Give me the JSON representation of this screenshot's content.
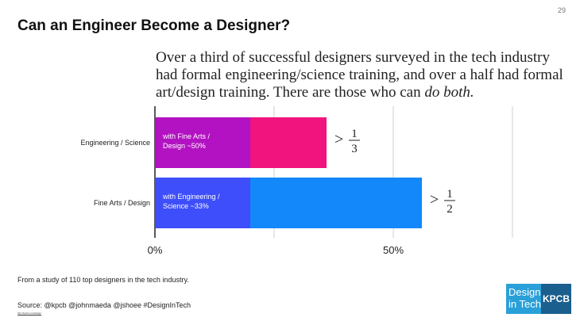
{
  "page_number": "29",
  "title": "Can an Engineer Become a Designer?",
  "subtitle": {
    "line1": "Over a third of successful designers surveyed in the tech industry",
    "line2": "had formal engineering/science training, and over a half had formal",
    "line3_prefix": "art/design training. There are those who can ",
    "line3_emphasis": "do both."
  },
  "chart_data": {
    "type": "bar",
    "orientation": "horizontal",
    "categories": [
      "Engineering / Science",
      "Fine Arts / Design"
    ],
    "series": [
      {
        "name": "Overlap",
        "values": [
          20,
          20
        ]
      },
      {
        "name": "Remainder",
        "values": [
          16,
          36
        ]
      }
    ],
    "totals": [
      36,
      56
    ],
    "bar_colors": [
      {
        "overlap": "#b312c2",
        "remainder": "#f2147e"
      },
      {
        "overlap": "#3e4efb",
        "remainder": "#1388fb"
      }
    ],
    "inner_labels": [
      [
        "with Fine Arts /",
        "Design ~50%"
      ],
      [
        "with Engineering /",
        "Science ~33%"
      ]
    ],
    "annotations": [
      {
        "symbol": ">",
        "numerator": "1",
        "denominator": "3"
      },
      {
        "symbol": ">",
        "numerator": "1",
        "denominator": "2"
      }
    ],
    "x_ticks": [
      {
        "value": 0,
        "label": "0%"
      },
      {
        "value": 50,
        "label": "50%"
      }
    ],
    "xlim": [
      0,
      75
    ],
    "gridlines": [
      0,
      25,
      50,
      75
    ],
    "title": "",
    "xlabel": "",
    "ylabel": ""
  },
  "footnote": "From a study of 110 top designers in the tech industry.",
  "source": "Source: @kpcb @johnmaeda @jshoee #DesignInTech",
  "source_link": "http://kpcb.com/design",
  "logo": {
    "line1": "Design",
    "line2": "in Tech",
    "brand": "KPCB"
  }
}
